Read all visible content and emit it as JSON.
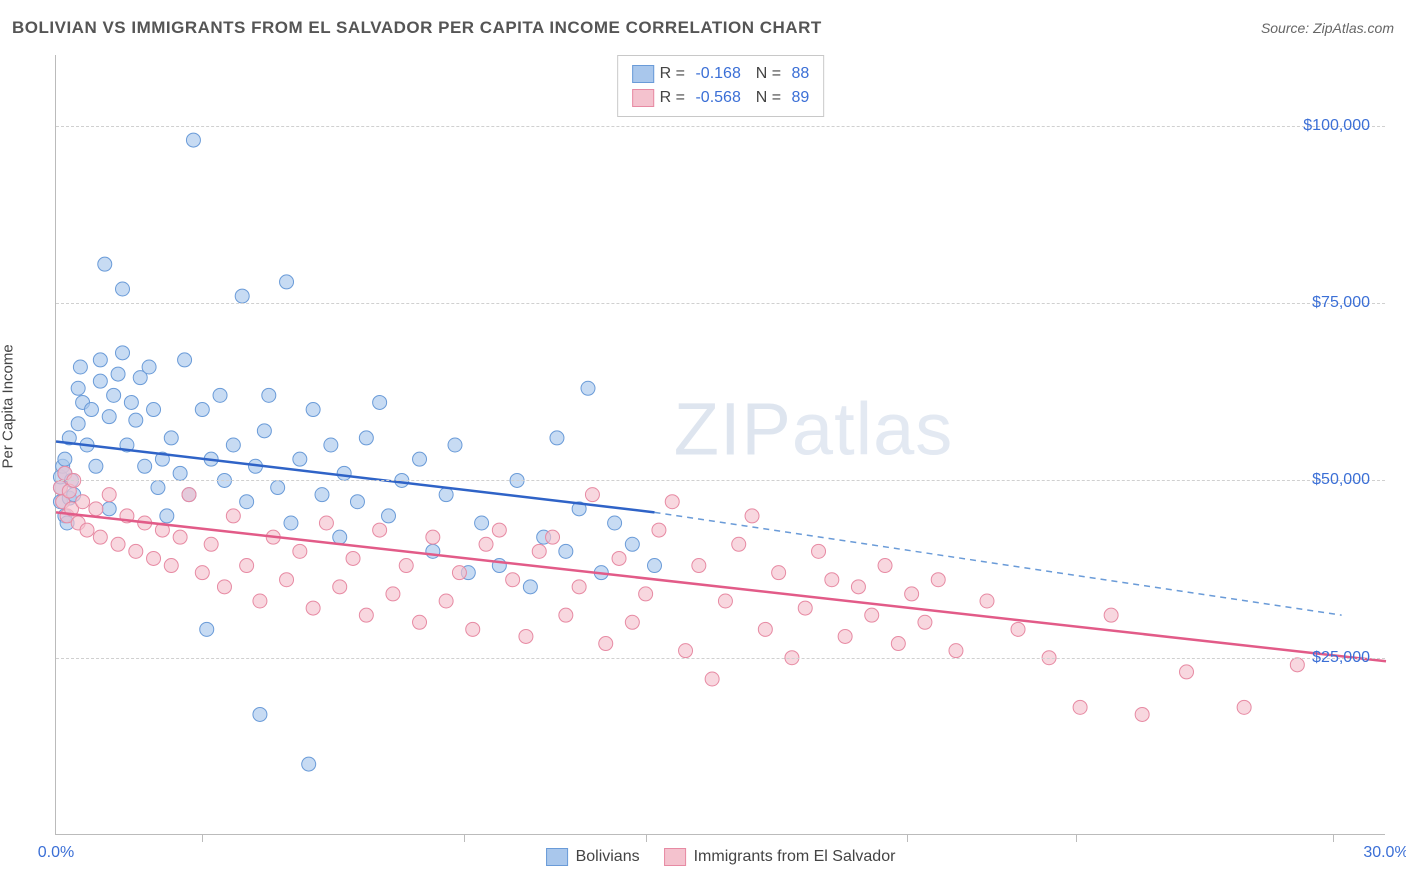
{
  "title": "BOLIVIAN VS IMMIGRANTS FROM EL SALVADOR PER CAPITA INCOME CORRELATION CHART",
  "source": "Source: ZipAtlas.com",
  "watermark": "ZIPatlas",
  "y_axis_label": "Per Capita Income",
  "chart": {
    "type": "scatter",
    "background_color": "#ffffff",
    "grid_color": "#d0d0d0",
    "axis_color": "#bbbbbb",
    "label_color": "#444444",
    "tick_label_color": "#3b6fd6",
    "xlim": [
      0,
      30
    ],
    "ylim": [
      0,
      110000
    ],
    "x_ticks": [
      {
        "v": 0,
        "label": "0.0%"
      },
      {
        "v": 30,
        "label": "30.0%"
      }
    ],
    "x_minor_ticks": [
      3.3,
      9.2,
      13.3,
      19.2,
      23.0,
      28.8
    ],
    "y_ticks": [
      {
        "v": 25000,
        "label": "$25,000"
      },
      {
        "v": 50000,
        "label": "$50,000"
      },
      {
        "v": 75000,
        "label": "$75,000"
      },
      {
        "v": 100000,
        "label": "$100,000"
      }
    ],
    "series": [
      {
        "name": "Bolivians",
        "R": "-0.168",
        "N": "88",
        "point_fill": "#a9c7ec",
        "point_stroke": "#6a9bd8",
        "point_opacity": 0.65,
        "point_radius": 7,
        "trend": {
          "x1": 0,
          "y1": 55500,
          "x2": 13.5,
          "y2": 45500,
          "stroke": "#2f63c7",
          "width": 2.5
        },
        "trend_ext": {
          "x1": 13.5,
          "y1": 45500,
          "x2": 29,
          "y2": 31000,
          "stroke": "#6a9bd8",
          "dash": "6,5",
          "width": 1.5
        },
        "points": [
          [
            0.1,
            47000
          ],
          [
            0.1,
            49000
          ],
          [
            0.1,
            50500
          ],
          [
            0.15,
            52000
          ],
          [
            0.2,
            45000
          ],
          [
            0.2,
            51000
          ],
          [
            0.2,
            53000
          ],
          [
            0.25,
            44000
          ],
          [
            0.3,
            47500
          ],
          [
            0.3,
            56000
          ],
          [
            0.35,
            50000
          ],
          [
            0.4,
            48000
          ],
          [
            0.5,
            63000
          ],
          [
            0.5,
            58000
          ],
          [
            0.55,
            66000
          ],
          [
            0.6,
            61000
          ],
          [
            0.7,
            55000
          ],
          [
            0.8,
            60000
          ],
          [
            0.9,
            52000
          ],
          [
            1.0,
            67000
          ],
          [
            1.0,
            64000
          ],
          [
            1.1,
            80500
          ],
          [
            1.2,
            59000
          ],
          [
            1.2,
            46000
          ],
          [
            1.3,
            62000
          ],
          [
            1.4,
            65000
          ],
          [
            1.5,
            77000
          ],
          [
            1.5,
            68000
          ],
          [
            1.6,
            55000
          ],
          [
            1.7,
            61000
          ],
          [
            1.8,
            58500
          ],
          [
            1.9,
            64500
          ],
          [
            2.0,
            52000
          ],
          [
            2.1,
            66000
          ],
          [
            2.2,
            60000
          ],
          [
            2.3,
            49000
          ],
          [
            2.4,
            53000
          ],
          [
            2.5,
            45000
          ],
          [
            2.6,
            56000
          ],
          [
            2.8,
            51000
          ],
          [
            2.9,
            67000
          ],
          [
            3.0,
            48000
          ],
          [
            3.1,
            98000
          ],
          [
            3.3,
            60000
          ],
          [
            3.4,
            29000
          ],
          [
            3.5,
            53000
          ],
          [
            3.7,
            62000
          ],
          [
            3.8,
            50000
          ],
          [
            4.0,
            55000
          ],
          [
            4.2,
            76000
          ],
          [
            4.3,
            47000
          ],
          [
            4.5,
            52000
          ],
          [
            4.6,
            17000
          ],
          [
            4.7,
            57000
          ],
          [
            4.8,
            62000
          ],
          [
            5.0,
            49000
          ],
          [
            5.2,
            78000
          ],
          [
            5.3,
            44000
          ],
          [
            5.5,
            53000
          ],
          [
            5.7,
            10000
          ],
          [
            5.8,
            60000
          ],
          [
            6.0,
            48000
          ],
          [
            6.2,
            55000
          ],
          [
            6.4,
            42000
          ],
          [
            6.5,
            51000
          ],
          [
            6.8,
            47000
          ],
          [
            7.0,
            56000
          ],
          [
            7.3,
            61000
          ],
          [
            7.5,
            45000
          ],
          [
            7.8,
            50000
          ],
          [
            8.2,
            53000
          ],
          [
            8.5,
            40000
          ],
          [
            8.8,
            48000
          ],
          [
            9.0,
            55000
          ],
          [
            9.3,
            37000
          ],
          [
            9.6,
            44000
          ],
          [
            10.0,
            38000
          ],
          [
            10.4,
            50000
          ],
          [
            10.7,
            35000
          ],
          [
            11.0,
            42000
          ],
          [
            11.3,
            56000
          ],
          [
            11.5,
            40000
          ],
          [
            11.8,
            46000
          ],
          [
            12.0,
            63000
          ],
          [
            12.3,
            37000
          ],
          [
            12.6,
            44000
          ],
          [
            13.0,
            41000
          ],
          [
            13.5,
            38000
          ]
        ]
      },
      {
        "name": "Immigants from El Salvador",
        "R": "-0.568",
        "N": "89",
        "point_fill": "#f4c2ce",
        "point_stroke": "#e78aa3",
        "point_opacity": 0.65,
        "point_radius": 7,
        "trend": {
          "x1": 0,
          "y1": 45500,
          "x2": 30,
          "y2": 24500,
          "stroke": "#e25b88",
          "width": 2.5
        },
        "points": [
          [
            0.1,
            49000
          ],
          [
            0.15,
            47000
          ],
          [
            0.2,
            51000
          ],
          [
            0.25,
            45000
          ],
          [
            0.3,
            48500
          ],
          [
            0.35,
            46000
          ],
          [
            0.4,
            50000
          ],
          [
            0.5,
            44000
          ],
          [
            0.6,
            47000
          ],
          [
            0.7,
            43000
          ],
          [
            0.9,
            46000
          ],
          [
            1.0,
            42000
          ],
          [
            1.2,
            48000
          ],
          [
            1.4,
            41000
          ],
          [
            1.6,
            45000
          ],
          [
            1.8,
            40000
          ],
          [
            2.0,
            44000
          ],
          [
            2.2,
            39000
          ],
          [
            2.4,
            43000
          ],
          [
            2.6,
            38000
          ],
          [
            2.8,
            42000
          ],
          [
            3.0,
            48000
          ],
          [
            3.3,
            37000
          ],
          [
            3.5,
            41000
          ],
          [
            3.8,
            35000
          ],
          [
            4.0,
            45000
          ],
          [
            4.3,
            38000
          ],
          [
            4.6,
            33000
          ],
          [
            4.9,
            42000
          ],
          [
            5.2,
            36000
          ],
          [
            5.5,
            40000
          ],
          [
            5.8,
            32000
          ],
          [
            6.1,
            44000
          ],
          [
            6.4,
            35000
          ],
          [
            6.7,
            39000
          ],
          [
            7.0,
            31000
          ],
          [
            7.3,
            43000
          ],
          [
            7.6,
            34000
          ],
          [
            7.9,
            38000
          ],
          [
            8.2,
            30000
          ],
          [
            8.5,
            42000
          ],
          [
            8.8,
            33000
          ],
          [
            9.1,
            37000
          ],
          [
            9.4,
            29000
          ],
          [
            9.7,
            41000
          ],
          [
            10.0,
            43000
          ],
          [
            10.3,
            36000
          ],
          [
            10.6,
            28000
          ],
          [
            10.9,
            40000
          ],
          [
            11.2,
            42000
          ],
          [
            11.5,
            31000
          ],
          [
            11.8,
            35000
          ],
          [
            12.1,
            48000
          ],
          [
            12.4,
            27000
          ],
          [
            12.7,
            39000
          ],
          [
            13.0,
            30000
          ],
          [
            13.3,
            34000
          ],
          [
            13.6,
            43000
          ],
          [
            13.9,
            47000
          ],
          [
            14.2,
            26000
          ],
          [
            14.5,
            38000
          ],
          [
            14.8,
            22000
          ],
          [
            15.1,
            33000
          ],
          [
            15.4,
            41000
          ],
          [
            15.7,
            45000
          ],
          [
            16.0,
            29000
          ],
          [
            16.3,
            37000
          ],
          [
            16.6,
            25000
          ],
          [
            16.9,
            32000
          ],
          [
            17.2,
            40000
          ],
          [
            17.5,
            36000
          ],
          [
            17.8,
            28000
          ],
          [
            18.1,
            35000
          ],
          [
            18.4,
            31000
          ],
          [
            18.7,
            38000
          ],
          [
            19.0,
            27000
          ],
          [
            19.3,
            34000
          ],
          [
            19.6,
            30000
          ],
          [
            19.9,
            36000
          ],
          [
            20.3,
            26000
          ],
          [
            21.0,
            33000
          ],
          [
            21.7,
            29000
          ],
          [
            22.4,
            25000
          ],
          [
            23.1,
            18000
          ],
          [
            23.8,
            31000
          ],
          [
            24.5,
            17000
          ],
          [
            25.5,
            23000
          ],
          [
            26.8,
            18000
          ],
          [
            28.0,
            24000
          ]
        ]
      }
    ],
    "bottom_legend": [
      {
        "label": "Bolivians",
        "fill": "#a9c7ec",
        "stroke": "#6a9bd8"
      },
      {
        "label": "Immigrants from El Salvador",
        "fill": "#f4c2ce",
        "stroke": "#e78aa3"
      }
    ]
  }
}
